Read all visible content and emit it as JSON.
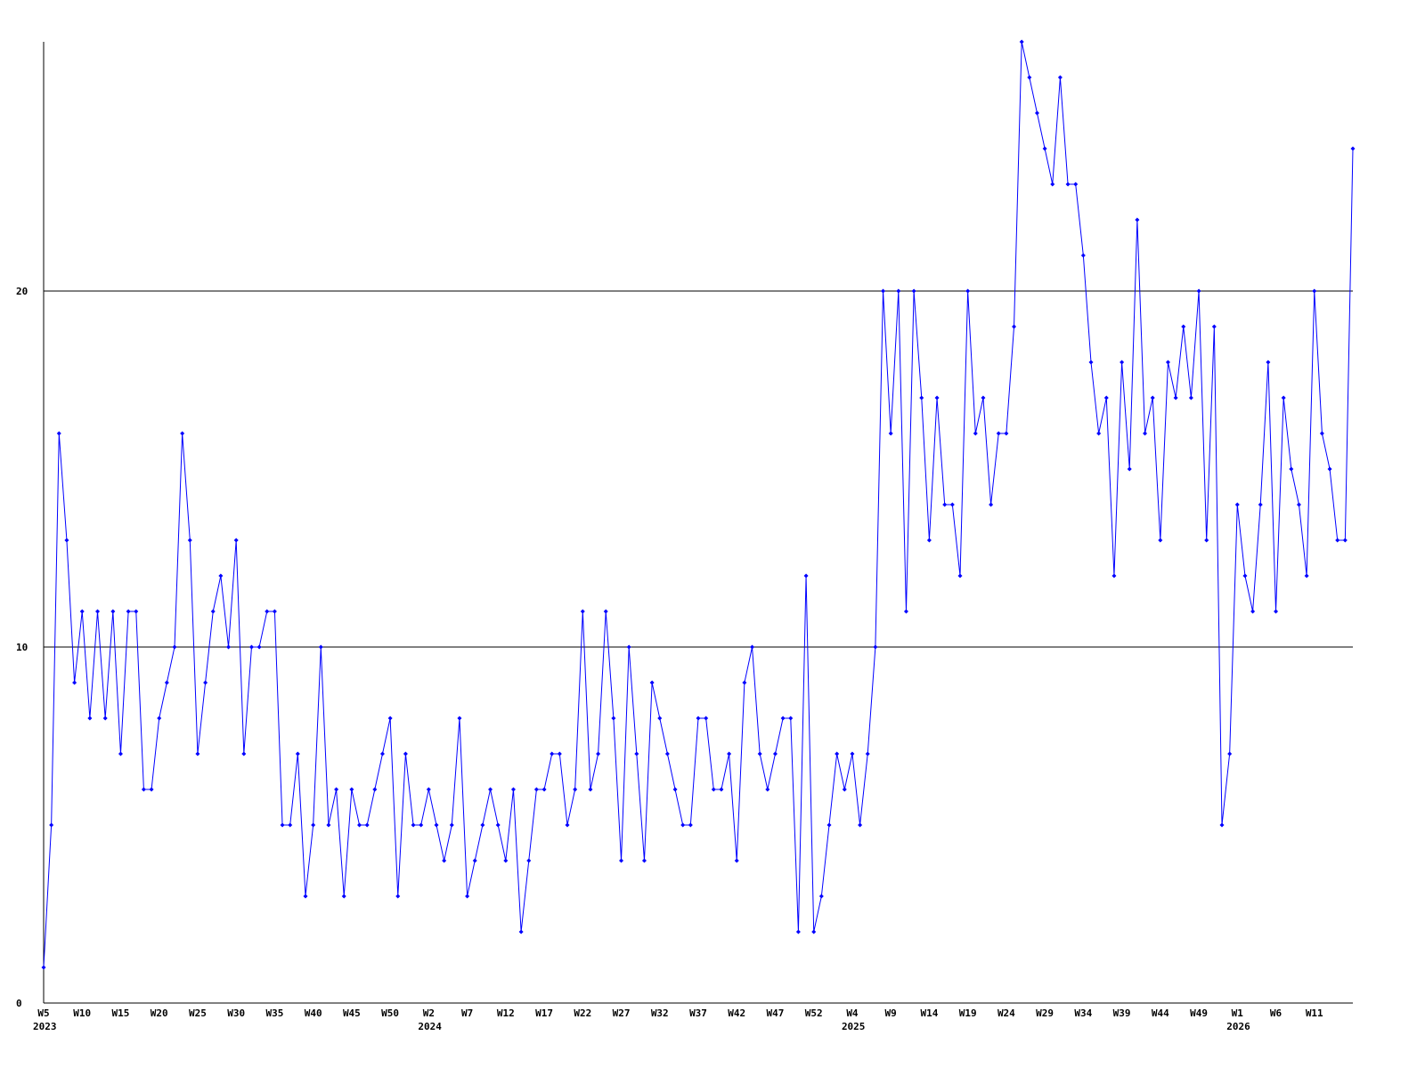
{
  "chart_data": {
    "type": "line",
    "color": "#0000ff",
    "grid": true,
    "ylim": [
      0,
      27
    ],
    "yticks": [
      0,
      10,
      20
    ],
    "categories": [
      "W5",
      null,
      null,
      null,
      null,
      "W10",
      null,
      null,
      null,
      null,
      "W15",
      null,
      null,
      null,
      null,
      "W20",
      null,
      null,
      null,
      null,
      "W25",
      null,
      null,
      null,
      null,
      "W30",
      null,
      null,
      null,
      null,
      "W35",
      null,
      null,
      null,
      null,
      "W40",
      null,
      null,
      null,
      null,
      "W45",
      null,
      null,
      null,
      null,
      "W50",
      null,
      null,
      null,
      null,
      "W2",
      null,
      null,
      null,
      null,
      "W7",
      null,
      null,
      null,
      null,
      "W12",
      null,
      null,
      null,
      null,
      "W17",
      null,
      null,
      null,
      null,
      "W22",
      null,
      null,
      null,
      null,
      "W27",
      null,
      null,
      null,
      null,
      "W32",
      null,
      null,
      null,
      null,
      "W37",
      null,
      null,
      null,
      null,
      "W42",
      null,
      null,
      null,
      null,
      "W47",
      null,
      null,
      null,
      null,
      "W52",
      null,
      null,
      null,
      null,
      "W4",
      null,
      null,
      null,
      null,
      "W9",
      null,
      null,
      null,
      null,
      "W14",
      null,
      null,
      null,
      null,
      "W19",
      null,
      null,
      null,
      null,
      "W24",
      null,
      null,
      null,
      null,
      "W29",
      null,
      null,
      null,
      null,
      "W34",
      null,
      null,
      null,
      null,
      "W39",
      null,
      null,
      null,
      null,
      "W44",
      null,
      null,
      null,
      null,
      "W49",
      null,
      null,
      null,
      null,
      "W1",
      null,
      null,
      null,
      null,
      "W6",
      null,
      null,
      null,
      null,
      "W11",
      null,
      null,
      null,
      null,
      null
    ],
    "category_years": [
      "2023",
      null,
      null,
      null,
      null,
      null,
      null,
      null,
      null,
      null,
      null,
      null,
      null,
      null,
      null,
      null,
      null,
      null,
      null,
      null,
      null,
      null,
      null,
      null,
      null,
      null,
      null,
      null,
      null,
      null,
      null,
      null,
      null,
      null,
      null,
      null,
      null,
      null,
      null,
      null,
      null,
      null,
      null,
      null,
      null,
      null,
      null,
      null,
      null,
      null,
      "2024",
      null,
      null,
      null,
      null,
      null,
      null,
      null,
      null,
      null,
      null,
      null,
      null,
      null,
      null,
      null,
      null,
      null,
      null,
      null,
      null,
      null,
      null,
      null,
      null,
      null,
      null,
      null,
      null,
      null,
      null,
      null,
      null,
      null,
      null,
      null,
      null,
      null,
      null,
      null,
      null,
      null,
      null,
      null,
      null,
      null,
      null,
      null,
      null,
      null,
      null,
      null,
      null,
      null,
      null,
      "2025",
      null,
      null,
      null,
      null,
      null,
      null,
      null,
      null,
      null,
      null,
      null,
      null,
      null,
      null,
      null,
      null,
      null,
      null,
      null,
      null,
      null,
      null,
      null,
      null,
      null,
      null,
      null,
      null,
      null,
      null,
      null,
      null,
      null,
      null,
      null,
      null,
      null,
      null,
      null,
      null,
      null,
      null,
      null,
      null,
      null,
      null,
      null,
      null,
      null,
      "2026",
      null,
      null,
      null,
      null,
      null,
      null,
      null,
      null,
      null,
      null,
      null,
      null,
      null,
      null,
      null
    ],
    "values": [
      1,
      5,
      16,
      13,
      9,
      11,
      8,
      11,
      8,
      11,
      7,
      11,
      11,
      6,
      6,
      8,
      9,
      10,
      16,
      13,
      7,
      9,
      11,
      12,
      10,
      13,
      7,
      10,
      10,
      11,
      11,
      5,
      5,
      7,
      3,
      5,
      10,
      5,
      6,
      3,
      6,
      5,
      5,
      6,
      7,
      8,
      3,
      7,
      5,
      5,
      6,
      5,
      4,
      5,
      8,
      3,
      4,
      5,
      6,
      5,
      4,
      6,
      2,
      4,
      6,
      6,
      7,
      7,
      5,
      6,
      11,
      6,
      7,
      11,
      8,
      4,
      10,
      7,
      4,
      9,
      8,
      7,
      6,
      5,
      5,
      8,
      8,
      6,
      6,
      7,
      4,
      9,
      10,
      7,
      6,
      7,
      8,
      8,
      2,
      12,
      2,
      3,
      5,
      7,
      6,
      7,
      5,
      7,
      10,
      20,
      16,
      20,
      11,
      20,
      17,
      13,
      17,
      14,
      14,
      12,
      20,
      16,
      17,
      14,
      16,
      16,
      19,
      27,
      26,
      25,
      24,
      23,
      26,
      23,
      23,
      21,
      18,
      16,
      17,
      12,
      18,
      15,
      22,
      16,
      17,
      13,
      18,
      17,
      19,
      17,
      20,
      13,
      19,
      5,
      7,
      14,
      12,
      11,
      14,
      18,
      11,
      17,
      15,
      14,
      12,
      20,
      16,
      15,
      13,
      13,
      24
    ]
  }
}
